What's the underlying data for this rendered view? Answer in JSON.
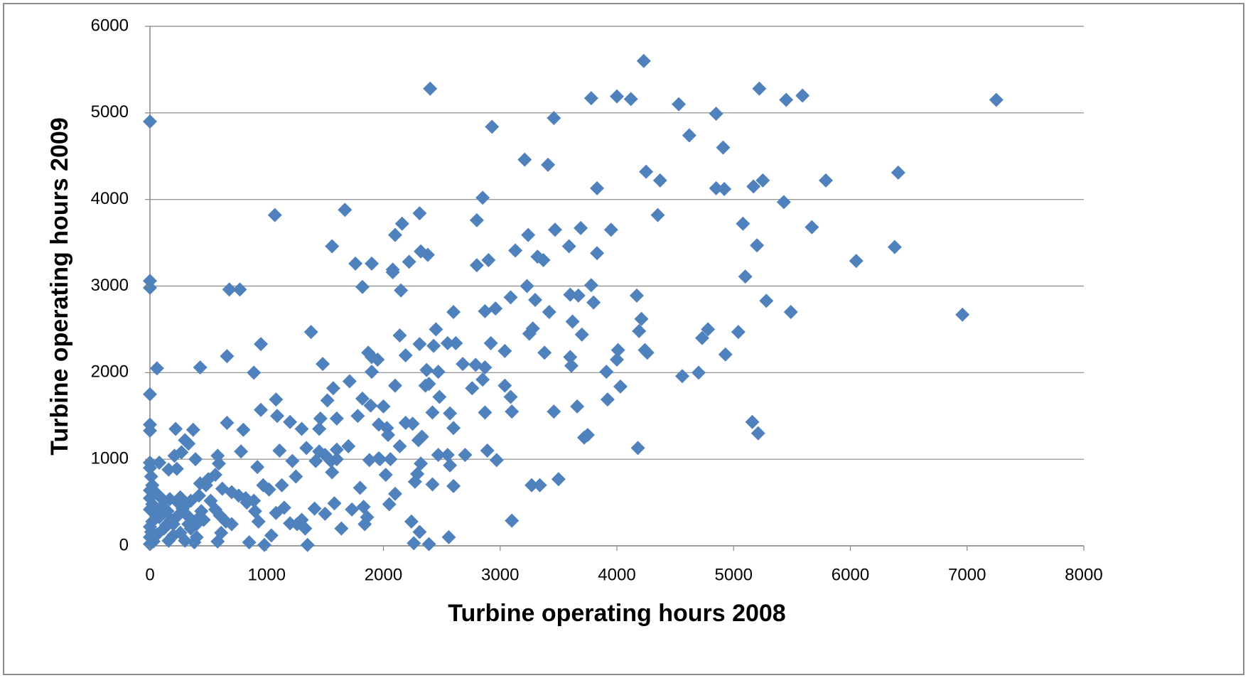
{
  "chart_data": {
    "type": "scatter",
    "x_label": "Turbine operating hours 2008",
    "y_label": "Turbine operating hours 2009",
    "color": "#4f81bd",
    "xlim": [
      0,
      8000
    ],
    "xticks": [
      0,
      1000,
      2000,
      3000,
      4000,
      5000,
      6000,
      7000,
      8000
    ],
    "ylim": [
      0,
      6000
    ],
    "yticks": [
      0,
      1000,
      2000,
      3000,
      4000,
      5000,
      6000
    ],
    "grid": true,
    "x": [
      4230,
      2400,
      0,
      3780,
      4000,
      4120,
      4530,
      5220,
      5450,
      5590,
      7250,
      4850,
      3460,
      2930,
      4620,
      4910,
      3210,
      3410,
      4250,
      6410,
      4370,
      5250,
      5790,
      5170,
      4850,
      4920,
      3830,
      2850,
      5430,
      1670,
      1070,
      2310,
      4350,
      2800,
      2160,
      5080,
      3470,
      3690,
      3950,
      5670,
      2100,
      3240,
      1560,
      3590,
      5200,
      6380,
      2320,
      3130,
      2380,
      3320,
      3370,
      3830,
      6050,
      1760,
      1900,
      2220,
      2900,
      2080,
      2800,
      2080,
      5100,
      0,
      0,
      680,
      770,
      1820,
      2150,
      3230,
      3780,
      3600,
      3670,
      3090,
      3300,
      4170,
      5280,
      3800,
      2870,
      2960,
      3420,
      2600,
      5490,
      6960,
      4210,
      3620,
      4190,
      3280,
      3250,
      2450,
      1380,
      4780,
      4730,
      5040,
      2140,
      3700,
      950,
      2310,
      2430,
      2550,
      2620,
      2920,
      3380,
      3040,
      4010,
      4240,
      4260,
      4930,
      660,
      1870,
      1900,
      1950,
      3600,
      2190,
      4000,
      1480,
      2680,
      2790,
      2870,
      3610,
      60,
      430,
      890,
      1900,
      2370,
      2470,
      3910,
      4560,
      4700,
      2390,
      3040,
      4030,
      1710,
      2100,
      2360,
      2480,
      2760,
      2850,
      0,
      1570,
      1820,
      1080,
      1520,
      1890,
      2000,
      3090,
      3920,
      3660,
      3460,
      3100,
      2870,
      2570,
      2420,
      2190,
      2250,
      1780,
      1090,
      1460,
      1600,
      1200,
      660,
      2030,
      1960,
      1300,
      1450,
      2600,
      3750,
      3720,
      5160,
      5210,
      0,
      0,
      220,
      370,
      800,
      950,
      1110,
      1340,
      1600,
      1500,
      1880,
      1960,
      2060,
      2300,
      2330,
      2470,
      2550,
      2700,
      2890,
      2970,
      4180,
      3340,
      3270,
      3500,
      3100,
      2600,
      2420,
      2290,
      2020,
      1970,
      2100,
      2050,
      1800,
      1730,
      1640,
      1500,
      1580,
      1300,
      1350,
      1250,
      1220,
      1130,
      1020,
      970,
      920,
      890,
      830,
      780,
      700,
      620,
      580,
      590,
      560,
      500,
      480,
      430,
      390,
      330,
      300,
      270,
      210,
      230,
      160,
      80,
      0,
      0,
      10,
      20,
      0,
      0,
      20,
      0,
      40,
      80,
      20,
      0,
      10,
      0,
      30,
      0,
      100,
      150,
      180,
      200,
      240,
      280,
      320,
      350,
      400,
      440,
      460,
      520,
      560,
      600,
      610,
      650,
      700,
      760,
      820,
      850,
      900,
      930,
      980,
      1040,
      1080,
      1150,
      1200,
      1260,
      1330,
      1410,
      1420,
      1450,
      1700,
      1840,
      1860,
      2040,
      2140,
      2240,
      2260,
      2310,
      2390,
      2560,
      2570,
      1550,
      1560,
      1600,
      1830,
      2270,
      2320,
      60,
      120,
      160,
      200,
      260,
      300,
      330,
      380,
      60,
      120,
      170,
      260,
      350,
      400,
      580,
      140,
      240,
      90,
      300,
      400,
      420
    ],
    "values": [
      5600,
      5280,
      4900,
      5170,
      5190,
      5160,
      5100,
      5280,
      5150,
      5200,
      5150,
      4990,
      4940,
      4840,
      4740,
      4600,
      4460,
      4400,
      4320,
      4310,
      4220,
      4220,
      4220,
      4150,
      4130,
      4120,
      4130,
      4020,
      3970,
      3880,
      3820,
      3840,
      3820,
      3760,
      3720,
      3720,
      3650,
      3670,
      3650,
      3680,
      3590,
      3590,
      3460,
      3460,
      3470,
      3450,
      3400,
      3410,
      3360,
      3340,
      3300,
      3380,
      3290,
      3260,
      3260,
      3280,
      3300,
      3190,
      3240,
      3160,
      3110,
      3060,
      2980,
      2960,
      2960,
      2990,
      2950,
      3000,
      3010,
      2900,
      2890,
      2870,
      2840,
      2890,
      2830,
      2810,
      2710,
      2740,
      2700,
      2700,
      2700,
      2670,
      2620,
      2590,
      2480,
      2510,
      2450,
      2500,
      2470,
      2500,
      2400,
      2470,
      2430,
      2440,
      2330,
      2330,
      2310,
      2340,
      2340,
      2340,
      2230,
      2250,
      2260,
      2260,
      2230,
      2210,
      2190,
      2230,
      2180,
      2150,
      2180,
      2200,
      2150,
      2100,
      2100,
      2090,
      2060,
      2080,
      2050,
      2060,
      2000,
      2010,
      2030,
      2010,
      2010,
      1960,
      2000,
      1870,
      1850,
      1840,
      1900,
      1850,
      1850,
      1720,
      1820,
      1920,
      1750,
      1820,
      1700,
      1690,
      1680,
      1620,
      1610,
      1720,
      1690,
      1610,
      1550,
      1550,
      1540,
      1530,
      1540,
      1420,
      1410,
      1500,
      1500,
      1470,
      1470,
      1430,
      1420,
      1360,
      1400,
      1350,
      1350,
      1360,
      1280,
      1250,
      1430,
      1300,
      1400,
      1330,
      1350,
      1340,
      1340,
      1570,
      1100,
      1130,
      1110,
      1050,
      990,
      1010,
      1000,
      1220,
      1260,
      1050,
      1050,
      1050,
      1100,
      990,
      1130,
      700,
      700,
      770,
      290,
      690,
      710,
      830,
      820,
      1000,
      600,
      480,
      670,
      420,
      200,
      370,
      490,
      300,
      10,
      800,
      980,
      700,
      650,
      700,
      910,
      520,
      500,
      1090,
      620,
      660,
      1040,
      950,
      820,
      770,
      700,
      720,
      1000,
      1180,
      1220,
      1080,
      1040,
      890,
      880,
      960,
      960,
      900,
      800,
      700,
      640,
      550,
      480,
      420,
      380,
      330,
      280,
      220,
      160,
      100,
      50,
      20,
      450,
      400,
      300,
      250,
      500,
      430,
      350,
      200,
      100,
      400,
      300,
      520,
      420,
      350,
      150,
      280,
      250,
      580,
      550,
      40,
      400,
      280,
      10,
      120,
      380,
      440,
      260,
      250,
      200,
      430,
      980,
      1090,
      1150,
      250,
      330,
      1280,
      1150,
      280,
      30,
      160,
      20,
      100,
      930,
      980,
      850,
      1000,
      450,
      740,
      950,
      130,
      200,
      60,
      120,
      150,
      60,
      250,
      40,
      600,
      520,
      540,
      560,
      520,
      300,
      50,
      240,
      350,
      350,
      470,
      250,
      580
    ]
  }
}
